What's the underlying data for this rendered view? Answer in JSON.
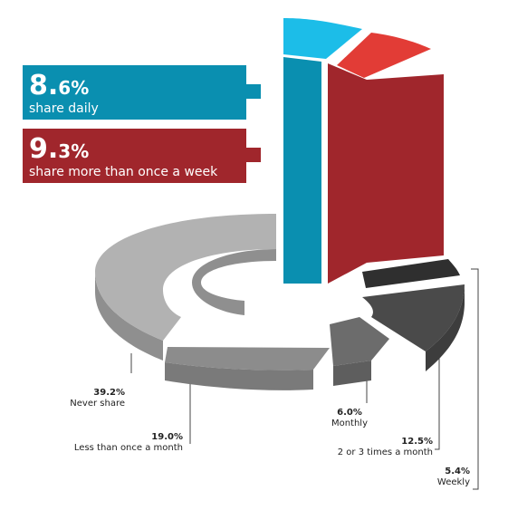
{
  "chart_data": {
    "type": "pie",
    "variant": "3d-donut-exploded",
    "slices": [
      {
        "label": "share daily",
        "value": 8.6,
        "color": "#0a8fb0",
        "top_color": "#1cbde8"
      },
      {
        "label": "share more than once a week",
        "value": 9.3,
        "color": "#a0262c",
        "top_color": "#e23c36"
      },
      {
        "label": "Weekly",
        "value": 5.4,
        "color": "#262626",
        "top_color": "#2f2f2f"
      },
      {
        "label": "2 or 3 times a month",
        "value": 12.5,
        "color": "#3d3d3d",
        "top_color": "#4a4a4a"
      },
      {
        "label": "Monthly",
        "value": 6.0,
        "color": "#5e5e5e",
        "top_color": "#6c6c6c"
      },
      {
        "label": "Less than once a month",
        "value": 19.0,
        "color": "#7a7a7a",
        "top_color": "#8c8c8c"
      },
      {
        "label": "Never share",
        "value": 39.2,
        "color": "#8f8f8f",
        "top_color": "#b2b2b2"
      }
    ],
    "callouts": [
      {
        "pct_main": "8.",
        "pct_rest": "6%",
        "text": "share daily",
        "color": "#0a8fb0"
      },
      {
        "pct_main": "9.",
        "pct_rest": "3%",
        "text": "share more than once a week",
        "color": "#a0262c"
      }
    ],
    "labels": [
      {
        "pct": "39.2%",
        "text": "Never share"
      },
      {
        "pct": "19.0%",
        "text": "Less than once a month"
      },
      {
        "pct": "6.0%",
        "text": "Monthly"
      },
      {
        "pct": "12.5%",
        "text": "2 or 3 times a month"
      },
      {
        "pct": "5.4%",
        "text": "Weekly"
      }
    ]
  }
}
